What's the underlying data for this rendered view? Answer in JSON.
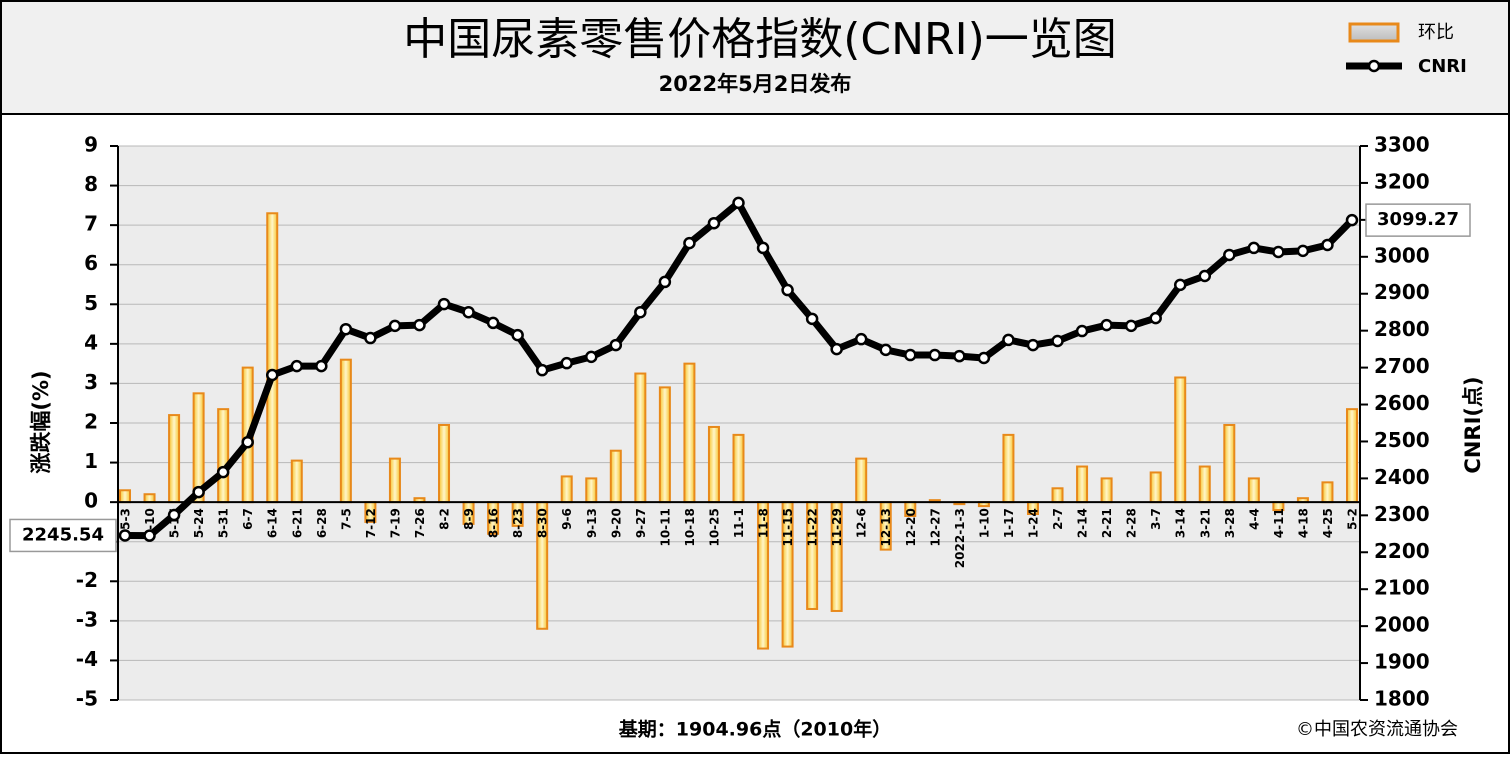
{
  "chart_data": {
    "type": "bar",
    "title": "中国尿素零售价格指数(CNRI)一览图",
    "subtitle": "2022年5月2日发布",
    "ylabel": "涨跌幅(%)",
    "y2label": "CNRI(点)",
    "note": "基期：1904.96点（2010年）",
    "source": "©中国农资流通协会",
    "categories": [
      "5-3",
      "5-10",
      "5-17",
      "5-24",
      "5-31",
      "6-7",
      "6-14",
      "6-21",
      "6-28",
      "7-5",
      "7-12",
      "7-19",
      "7-26",
      "8-2",
      "8-9",
      "8-16",
      "8-23",
      "8-30",
      "9-6",
      "9-13",
      "9-20",
      "9-27",
      "10-11",
      "10-18",
      "10-25",
      "11-1",
      "11-8",
      "11-15",
      "11-22",
      "11-29",
      "12-6",
      "12-13",
      "12-20",
      "12-27",
      "2022-1-3",
      "1-10",
      "1-17",
      "1-24",
      "2-7",
      "2-14",
      "2-21",
      "2-28",
      "3-7",
      "3-14",
      "3-21",
      "3-28",
      "4-4",
      "4-11",
      "4-18",
      "4-25",
      "5-2"
    ],
    "series": [
      {
        "name": "环比",
        "type": "bar",
        "color": "#e8891a",
        "values": [
          0.3,
          0.2,
          2.2,
          2.75,
          2.35,
          3.4,
          7.3,
          1.05,
          0,
          3.6,
          -0.5,
          1.1,
          0.1,
          1.95,
          -0.55,
          -0.8,
          -0.6,
          -3.2,
          0.65,
          0.6,
          1.3,
          3.25,
          2.9,
          3.5,
          1.9,
          1.7,
          -3.7,
          -3.65,
          -2.7,
          -2.75,
          1.1,
          -1.2,
          -0.35,
          0.05,
          -0.05,
          -0.1,
          1.7,
          -0.3,
          0.35,
          0.9,
          0.6,
          0,
          0.75,
          3.15,
          0.9,
          1.95,
          0.6,
          -0.2,
          0.1,
          0.5,
          2.35
        ]
      },
      {
        "name": "CNRI",
        "type": "line",
        "axis": "y2",
        "color": "#000000",
        "values": [
          2245.54,
          2245,
          2301,
          2363,
          2417,
          2498,
          2680,
          2704,
          2704,
          2804,
          2780,
          2813,
          2815,
          2872,
          2850,
          2821,
          2788,
          2693,
          2712,
          2729,
          2761,
          2850,
          2932,
          3037,
          3091,
          3146,
          3024,
          2910,
          2832,
          2750,
          2777,
          2748,
          2734,
          2734,
          2731,
          2726,
          2775,
          2761,
          2772,
          2799,
          2815,
          2813,
          2834,
          2924,
          2948,
          3005,
          3024,
          3013,
          3016,
          3032,
          3099.27
        ]
      }
    ],
    "ylim": [
      -5,
      9
    ],
    "yticks": [
      -5,
      -4,
      -3,
      -2,
      -1,
      0,
      1,
      2,
      3,
      4,
      5,
      6,
      7,
      8,
      9
    ],
    "y2lim": [
      1800,
      3300
    ],
    "y2ticks": [
      1800,
      1900,
      2000,
      2100,
      2200,
      2300,
      2400,
      2500,
      2600,
      2700,
      2800,
      2900,
      3000,
      3100,
      3200,
      3300
    ],
    "grid": true
  }
}
